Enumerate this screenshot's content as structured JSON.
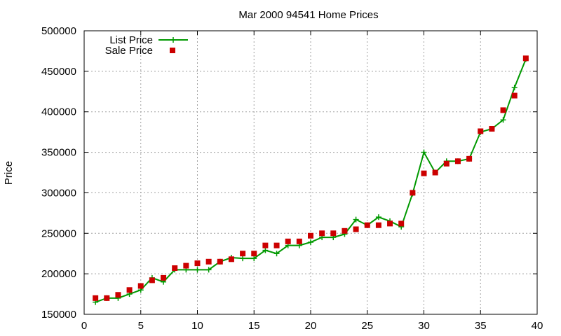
{
  "chart_data": {
    "type": "line",
    "title": "Mar 2000 94541 Home Prices",
    "xlabel": "",
    "ylabel": "Price",
    "xlim": [
      0,
      40
    ],
    "ylim": [
      150000,
      500000
    ],
    "xticks": [
      "0",
      "5",
      "10",
      "15",
      "20",
      "25",
      "30",
      "35",
      "40"
    ],
    "yticks": [
      "150000",
      "200000",
      "250000",
      "300000",
      "350000",
      "400000",
      "450000",
      "500000"
    ],
    "grid": true,
    "legend": "top-left",
    "series": [
      {
        "name": "List Price",
        "style": "line+cross",
        "color": "#009900",
        "x": [
          1,
          2,
          3,
          4,
          5,
          6,
          7,
          8,
          9,
          10,
          11,
          12,
          13,
          14,
          15,
          16,
          17,
          18,
          19,
          20,
          21,
          22,
          23,
          24,
          25,
          26,
          27,
          28,
          29,
          30,
          31,
          32,
          33,
          34,
          35,
          36,
          37,
          38,
          39
        ],
        "values": [
          165000,
          170000,
          170000,
          175000,
          180000,
          195000,
          190000,
          205000,
          205000,
          205000,
          205000,
          215000,
          220000,
          219000,
          219000,
          229000,
          225000,
          235000,
          235000,
          239000,
          245000,
          245000,
          249000,
          267000,
          260000,
          270000,
          265000,
          258000,
          299000,
          350000,
          325000,
          339000,
          339000,
          342000,
          375000,
          379000,
          390000,
          430000,
          465000
        ]
      },
      {
        "name": "Sale Price",
        "style": "square",
        "color": "#cc0000",
        "x": [
          1,
          2,
          3,
          4,
          5,
          6,
          7,
          8,
          9,
          10,
          11,
          12,
          13,
          14,
          15,
          16,
          17,
          18,
          19,
          20,
          21,
          22,
          23,
          24,
          25,
          26,
          27,
          28,
          29,
          30,
          31,
          32,
          33,
          34,
          35,
          36,
          37,
          38,
          39
        ],
        "values": [
          170000,
          170000,
          174000,
          180000,
          185000,
          192000,
          195000,
          207000,
          210000,
          213000,
          215000,
          215000,
          218000,
          225000,
          225000,
          235000,
          235000,
          240000,
          240000,
          247000,
          250000,
          250000,
          253000,
          255000,
          260000,
          260000,
          262000,
          262000,
          300000,
          324000,
          325000,
          336000,
          339000,
          342000,
          376000,
          379000,
          402000,
          420000,
          466000
        ]
      }
    ]
  }
}
